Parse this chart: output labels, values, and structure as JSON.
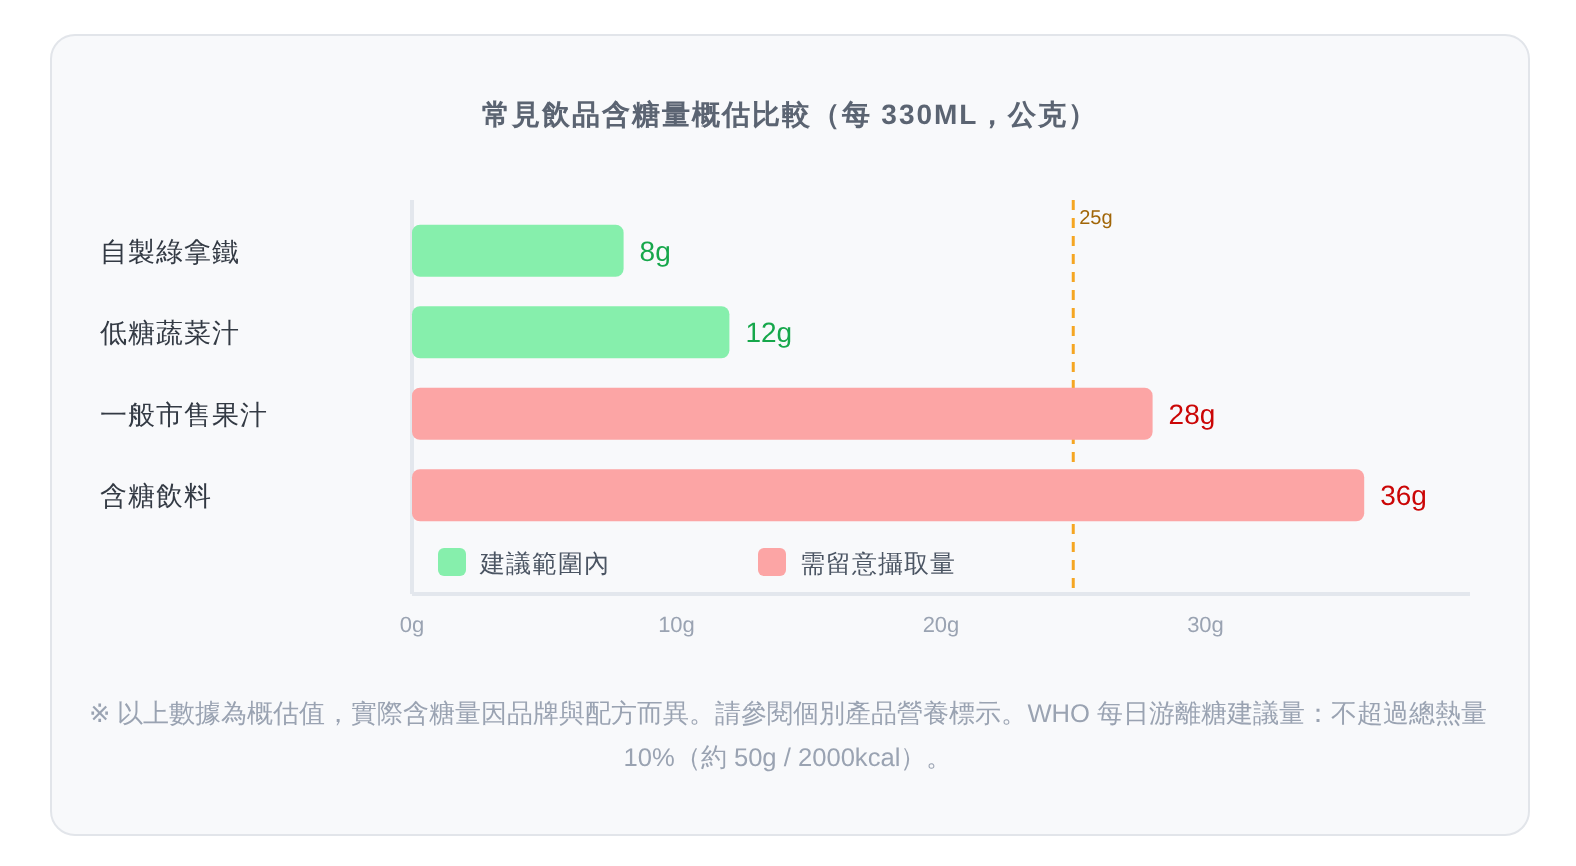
{
  "chart_data": {
    "type": "bar",
    "orientation": "horizontal",
    "title": "常見飲品含糖量概估比較（每 330ML，公克）",
    "categories": [
      "自製綠拿鐵",
      "低糖蔬菜汁",
      "一般市售果汁",
      "含糖飲料"
    ],
    "series": [
      {
        "name": "建議範圍內",
        "color": "#86efac",
        "values": [
          8,
          12,
          null,
          null
        ],
        "value_labels": [
          "8g",
          "12g",
          null,
          null
        ]
      },
      {
        "name": "需留意攝取量",
        "color": "#fca5a5",
        "values": [
          null,
          null,
          28,
          36
        ],
        "value_labels": [
          null,
          null,
          "28g",
          "36g"
        ]
      }
    ],
    "xlim": [
      0,
      40
    ],
    "xticks": [
      {
        "value": 0,
        "label": "0g"
      },
      {
        "value": 10,
        "label": "10g"
      },
      {
        "value": 20,
        "label": "20g"
      },
      {
        "value": 30,
        "label": "30g"
      }
    ],
    "ref_lines": [
      {
        "axis": "x",
        "value": 25,
        "label": "25g",
        "color": "#f5a623",
        "line_style": "dashed"
      }
    ],
    "legend": "bottom left",
    "annotations": [
      "※ 以上數據為概估值，實際含糖量因品牌與配方而異。請參閱個別產品營養標示。WHO 每日游離糖建議量：不超過總熱量 10%（約 50g / 2000kcal）。"
    ]
  }
}
